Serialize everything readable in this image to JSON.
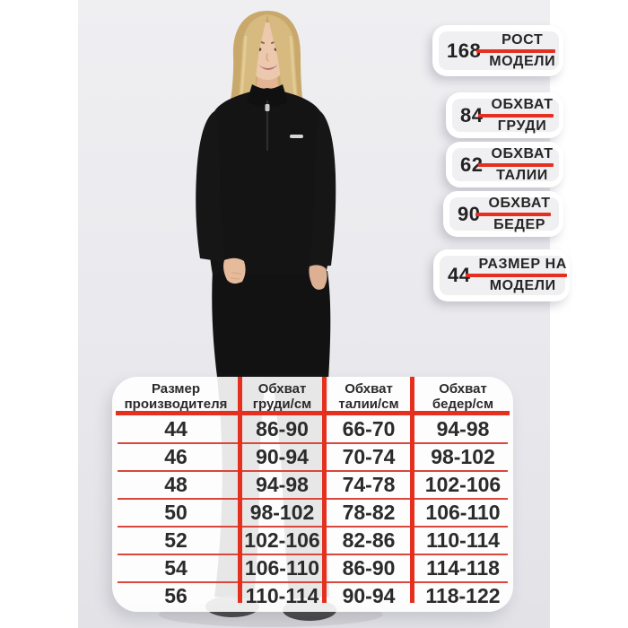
{
  "colors": {
    "accent_red": "#e5301f",
    "thin_line_red": "#d9473d",
    "text_dark": "#2b2b2b",
    "badge_inner_bg": "#f0f0f3",
    "photo_bg": "#eaeaee"
  },
  "model_stats": {
    "badges": [
      {
        "value": "168",
        "line1": "РОСТ",
        "line2": "МОДЕЛИ"
      },
      {
        "value": "84",
        "line1": "ОБХВАТ",
        "line2": "ГРУДИ"
      },
      {
        "value": "62",
        "line1": "ОБХВАТ",
        "line2": "ТАЛИИ"
      },
      {
        "value": "90",
        "line1": "ОБХВАТ",
        "line2": "БЕДЕР"
      },
      {
        "value": "44",
        "line1": "РАЗМЕР НА",
        "line2": "МОДЕЛИ"
      }
    ]
  },
  "size_table": {
    "headers": [
      {
        "line1": "Размер",
        "line2": "производителя"
      },
      {
        "line1": "Обхват",
        "line2": "груди/см"
      },
      {
        "line1": "Обхват",
        "line2": "талии/см"
      },
      {
        "line1": "Обхват",
        "line2": "бедер/см"
      }
    ],
    "rows": [
      [
        "44",
        "86-90",
        "66-70",
        "94-98"
      ],
      [
        "46",
        "90-94",
        "70-74",
        "98-102"
      ],
      [
        "48",
        "94-98",
        "74-78",
        "102-106"
      ],
      [
        "50",
        "98-102",
        "78-82",
        "106-110"
      ],
      [
        "52",
        "102-106",
        "82-86",
        "110-114"
      ],
      [
        "54",
        "106-110",
        "86-90",
        "114-118"
      ],
      [
        "56",
        "110-114",
        "90-94",
        "118-122"
      ]
    ]
  }
}
